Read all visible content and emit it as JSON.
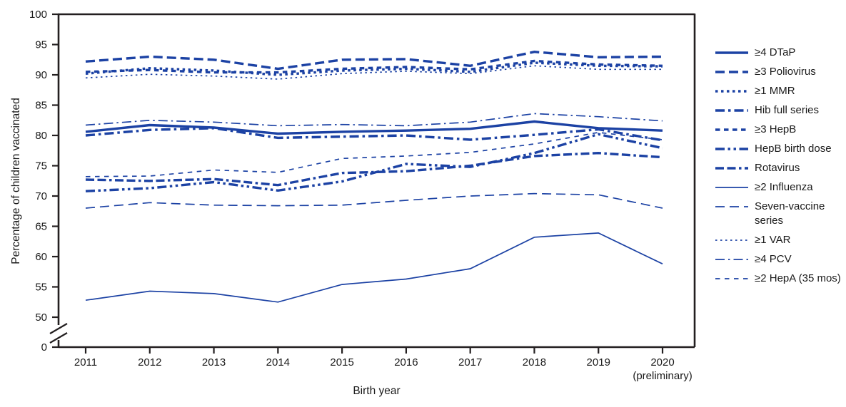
{
  "chart_data": {
    "type": "line",
    "title": "",
    "xlabel": "Birth year",
    "ylabel": "Percentage of children vaccinated",
    "x_tick_labels": [
      "2011",
      "2012",
      "2013",
      "2014",
      "2015",
      "2016",
      "2017",
      "2018",
      "2019",
      "2020"
    ],
    "last_tick_note": "(preliminary)",
    "y_ticks": [
      100,
      95,
      90,
      85,
      80,
      75,
      70,
      65,
      60,
      55,
      50
    ],
    "y_zero_label": "0",
    "axis_break": true,
    "ylim_shown": [
      50,
      100
    ],
    "grid": false,
    "legend_position": "right",
    "line_color": "#1c42a4",
    "axis_color": "#231f20",
    "series": [
      {
        "name": "≥4 DTaP",
        "style": "solid",
        "values": [
          80.6,
          81.7,
          81.3,
          80.3,
          80.6,
          80.8,
          81.1,
          82.3,
          81.2,
          80.8
        ]
      },
      {
        "name": "≥3 Poliovirus",
        "style": "long-dash",
        "values": [
          92.2,
          93.0,
          92.5,
          91.0,
          92.5,
          92.6,
          91.5,
          93.8,
          92.9,
          93.0
        ]
      },
      {
        "name": "≥1 MMR",
        "style": "dotted-bold",
        "values": [
          90.2,
          91.1,
          90.7,
          90.0,
          90.7,
          91.0,
          90.5,
          92.0,
          91.5,
          91.4
        ]
      },
      {
        "name": "Hib full series",
        "style": "dash-dot-bold",
        "values": [
          80.0,
          80.9,
          81.2,
          79.6,
          79.8,
          80.0,
          79.3,
          80.1,
          81.0,
          79.2
        ]
      },
      {
        "name": "≥3 HepB",
        "style": "square-dash-bold",
        "values": [
          90.5,
          90.8,
          90.4,
          90.4,
          91.0,
          91.3,
          90.9,
          92.3,
          91.7,
          91.5
        ]
      },
      {
        "name": "HepB birth dose",
        "style": "dash-dot-dot-bold",
        "values": [
          70.8,
          71.3,
          72.3,
          70.9,
          72.4,
          75.3,
          74.8,
          77.1,
          80.2,
          77.9
        ]
      },
      {
        "name": "Rotavirus",
        "style": "dash-dash-dot-bold",
        "values": [
          72.7,
          72.5,
          72.8,
          71.8,
          73.8,
          74.1,
          75.0,
          76.6,
          77.1,
          76.4
        ]
      },
      {
        "name": "≥2 Influenza",
        "style": "solid-thin",
        "values": [
          52.8,
          54.3,
          53.9,
          52.5,
          55.4,
          56.3,
          58.0,
          63.2,
          63.9,
          58.8
        ]
      },
      {
        "name": "Seven-vaccine series",
        "style": "long-dash-thin",
        "values": [
          68.0,
          68.9,
          68.5,
          68.4,
          68.5,
          69.3,
          70.0,
          70.4,
          70.2,
          68.0
        ]
      },
      {
        "name": "≥1 VAR",
        "style": "dotted-thin",
        "values": [
          89.5,
          90.1,
          89.8,
          89.3,
          90.2,
          90.6,
          90.2,
          91.5,
          90.9,
          90.9
        ]
      },
      {
        "name": "≥4 PCV",
        "style": "dash-dot-thin",
        "values": [
          81.7,
          82.5,
          82.2,
          81.6,
          81.8,
          81.6,
          82.2,
          83.6,
          83.1,
          82.4
        ]
      },
      {
        "name": "≥2 HepA (35 mos)",
        "style": "short-dash-thin",
        "values": [
          73.2,
          73.3,
          74.3,
          73.9,
          76.2,
          76.6,
          77.2,
          78.6,
          80.5,
          79.3
        ]
      }
    ]
  }
}
